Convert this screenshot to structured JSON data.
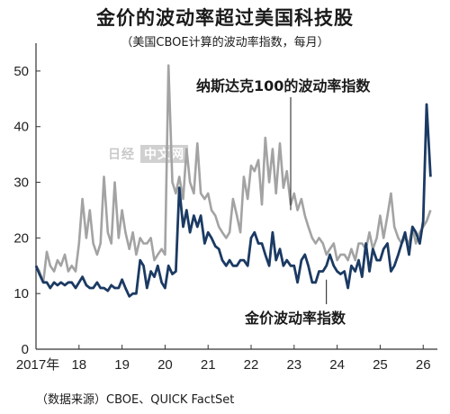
{
  "header": {
    "title": "金价的波动率超过美国科技股",
    "subtitle": "（美国CBOE计算的波动率指数，每月）"
  },
  "source": "（数据来源）CBOE、QUICK FactSet",
  "watermark": {
    "brand": "日经",
    "suffix": "中文网"
  },
  "colors": {
    "gold": "#1b3a63",
    "nasdaq": "#a3a3a3",
    "axis": "#333333"
  },
  "chart_data": {
    "type": "line",
    "title": "金价的波动率超过美国科技股",
    "subtitle": "（美国CBOE计算的波动率指数，每月）",
    "xlabel": "",
    "ylabel": "",
    "x_tick_labels": [
      "2017年",
      "18",
      "19",
      "20",
      "21",
      "22",
      "23",
      "24",
      "25",
      "26"
    ],
    "y_ticks": [
      0,
      10,
      20,
      30,
      40,
      50
    ],
    "ylim": [
      0,
      55
    ],
    "xlim": [
      2017.0,
      2026.33
    ],
    "grid": false,
    "x": [
      2017.0,
      2017.08,
      2017.17,
      2017.25,
      2017.33,
      2017.42,
      2017.5,
      2017.58,
      2017.67,
      2017.75,
      2017.83,
      2017.92,
      2018.0,
      2018.08,
      2018.17,
      2018.25,
      2018.33,
      2018.42,
      2018.5,
      2018.58,
      2018.67,
      2018.75,
      2018.83,
      2018.92,
      2019.0,
      2019.08,
      2019.17,
      2019.25,
      2019.33,
      2019.42,
      2019.5,
      2019.58,
      2019.67,
      2019.75,
      2019.83,
      2019.92,
      2020.0,
      2020.08,
      2020.17,
      2020.25,
      2020.33,
      2020.42,
      2020.5,
      2020.58,
      2020.67,
      2020.75,
      2020.83,
      2020.92,
      2021.0,
      2021.08,
      2021.17,
      2021.25,
      2021.33,
      2021.42,
      2021.5,
      2021.58,
      2021.67,
      2021.75,
      2021.83,
      2021.92,
      2022.0,
      2022.08,
      2022.17,
      2022.25,
      2022.33,
      2022.42,
      2022.5,
      2022.58,
      2022.67,
      2022.75,
      2022.83,
      2022.92,
      2023.0,
      2023.08,
      2023.17,
      2023.25,
      2023.33,
      2023.42,
      2023.5,
      2023.58,
      2023.67,
      2023.75,
      2023.83,
      2023.92,
      2024.0,
      2024.08,
      2024.17,
      2024.25,
      2024.33,
      2024.42,
      2024.5,
      2024.58,
      2024.67,
      2024.75,
      2024.83,
      2024.92,
      2025.0,
      2025.08,
      2025.17,
      2025.25,
      2025.33,
      2025.42,
      2025.5,
      2025.58,
      2025.67,
      2025.75,
      2025.83,
      2025.92,
      2026.0,
      2026.08,
      2026.17
    ],
    "series": [
      {
        "name": "纳斯达克100的波动率指数",
        "label_anchor_x": 2022.92,
        "label_anchor_y": 25,
        "values": [
          15,
          14,
          12,
          17.5,
          15,
          14,
          16,
          15,
          17,
          14,
          15,
          14,
          19,
          27,
          20,
          25,
          19,
          17,
          19,
          31,
          21,
          19,
          30,
          20,
          25,
          21,
          18,
          21,
          17,
          20,
          19,
          19,
          20,
          16,
          17,
          18,
          17,
          51,
          30,
          28,
          31,
          27,
          36,
          30,
          28,
          37,
          28,
          27,
          28,
          25,
          24,
          22,
          21,
          20,
          21,
          27,
          24,
          21,
          31,
          27,
          33,
          32,
          34,
          26,
          38,
          30,
          36,
          28,
          37,
          29,
          32,
          26,
          28,
          25,
          27,
          24,
          22,
          20,
          19,
          20,
          19,
          17,
          18,
          19,
          16,
          17,
          17,
          16,
          18,
          16,
          19,
          19,
          18,
          21,
          18,
          20,
          24,
          20,
          24,
          28,
          22,
          20,
          19,
          20,
          19,
          22,
          19,
          21,
          22,
          23,
          25
        ]
      },
      {
        "name": "金价波动率指数",
        "label_anchor_x": 2023.75,
        "label_anchor_y": 12.5,
        "values": [
          15,
          13.5,
          12,
          12,
          11,
          12,
          11.5,
          12,
          11.5,
          12,
          12,
          11,
          12,
          13,
          11.5,
          11,
          11,
          12,
          11,
          11,
          10.5,
          11.5,
          11,
          11,
          12.5,
          11,
          9.5,
          10,
          10,
          16,
          15,
          11,
          14,
          13,
          15,
          12,
          11,
          15,
          13.5,
          14,
          29,
          22,
          25,
          21,
          24,
          22,
          24,
          19,
          21,
          20,
          18.5,
          18,
          16,
          15,
          16,
          15,
          15,
          16,
          16,
          15,
          20,
          21,
          19,
          19,
          17,
          15,
          21,
          16,
          18,
          15,
          16,
          15,
          15,
          12,
          16,
          17,
          15,
          12,
          12,
          14,
          14,
          15,
          17,
          15,
          14,
          13.5,
          14,
          11,
          15,
          14,
          16,
          13,
          19,
          14,
          18,
          16,
          16,
          18,
          19,
          14,
          15,
          17,
          19,
          21,
          17,
          22,
          21,
          19,
          23,
          44,
          31
        ]
      }
    ]
  }
}
